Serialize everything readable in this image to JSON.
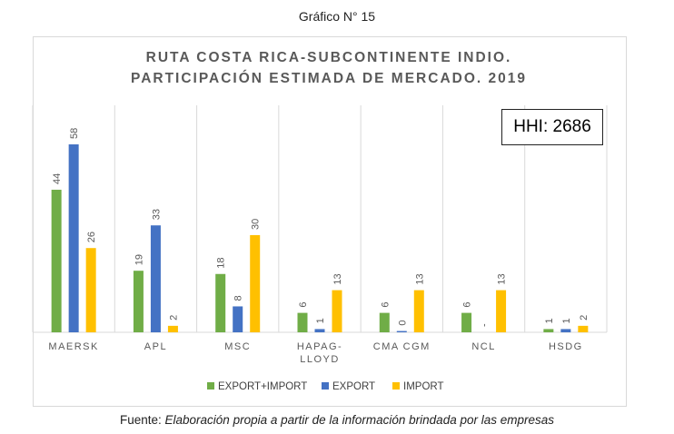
{
  "figure_label": "Gráfico N° 15",
  "annotation": "HHI: 2686",
  "source": {
    "label": "Fuente:",
    "text": "Elaboración propia a partir de la información brindada por las empresas"
  },
  "colors": {
    "export_import": "#70ad47",
    "export": "#4472c4",
    "import": "#ffc000",
    "grid": "#d9d9d9",
    "axis_text": "#595959"
  },
  "chart_data": {
    "type": "bar",
    "title": "RUTA COSTA RICA-SUBCONTINENTE INDIO.",
    "subtitle": "PARTICIPACIÓN ESTIMADA DE MERCADO. 2019",
    "xlabel": "",
    "ylabel": "",
    "ylim": [
      0,
      65
    ],
    "grid": "vertical",
    "legend_position": "bottom",
    "categories": [
      "MAERSK",
      "APL",
      "MSC",
      "HAPAG-LLOYD",
      "CMA CGM",
      "NCL",
      "HSDG"
    ],
    "category_lines": [
      [
        "MAERSK"
      ],
      [
        "APL"
      ],
      [
        "MSC"
      ],
      [
        "HAPAG-",
        "LLOYD"
      ],
      [
        "CMA CGM"
      ],
      [
        "NCL"
      ],
      [
        "HSDG"
      ]
    ],
    "series": [
      {
        "name": "EXPORT+IMPORT",
        "color": "#70ad47",
        "values": [
          44,
          19,
          18,
          6,
          6,
          6,
          1
        ],
        "labels": [
          "44",
          "19",
          "18",
          "6",
          "6",
          "6",
          "1"
        ]
      },
      {
        "name": "EXPORT",
        "color": "#4472c4",
        "values": [
          58,
          33,
          8,
          1,
          0.4,
          0,
          1
        ],
        "labels": [
          "58",
          "33",
          "8",
          "1",
          "0",
          "-",
          "1"
        ]
      },
      {
        "name": "IMPORT",
        "color": "#ffc000",
        "values": [
          26,
          2,
          30,
          13,
          13,
          13,
          2
        ],
        "labels": [
          "26",
          "2",
          "30",
          "13",
          "13",
          "13",
          "2"
        ]
      }
    ]
  }
}
